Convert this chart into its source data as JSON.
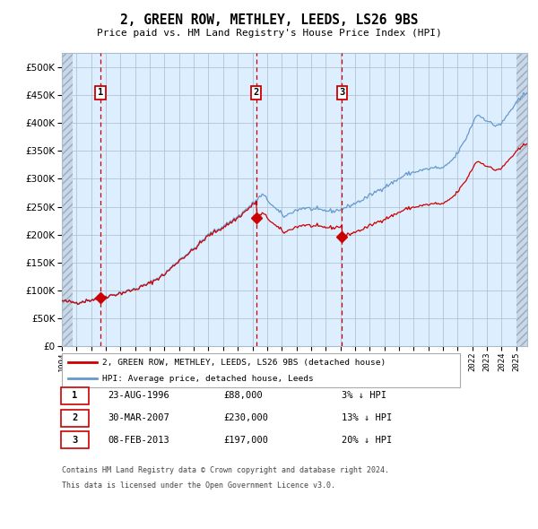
{
  "title": "2, GREEN ROW, METHLEY, LEEDS, LS26 9BS",
  "subtitle": "Price paid vs. HM Land Registry's House Price Index (HPI)",
  "legend_property": "2, GREEN ROW, METHLEY, LEEDS, LS26 9BS (detached house)",
  "legend_hpi": "HPI: Average price, detached house, Leeds",
  "transactions": [
    {
      "label": "1",
      "date": "23-AUG-1996",
      "price": 88000,
      "hpi_note": "3% ↓ HPI",
      "x_year": 1996.64
    },
    {
      "label": "2",
      "date": "30-MAR-2007",
      "price": 230000,
      "hpi_note": "13% ↓ HPI",
      "x_year": 2007.25
    },
    {
      "label": "3",
      "date": "08-FEB-2013",
      "price": 197000,
      "hpi_note": "20% ↓ HPI",
      "x_year": 2013.11
    }
  ],
  "footer_lines": [
    "Contains HM Land Registry data © Crown copyright and database right 2024.",
    "This data is licensed under the Open Government Licence v3.0."
  ],
  "property_color": "#cc0000",
  "hpi_color": "#6699cc",
  "vline_color": "#cc0000",
  "plot_bg": "#ddeeff",
  "grid_color": "#aabbcc",
  "ylim": [
    0,
    525000
  ],
  "xlim_start": 1994.0,
  "xlim_end": 2025.75
}
